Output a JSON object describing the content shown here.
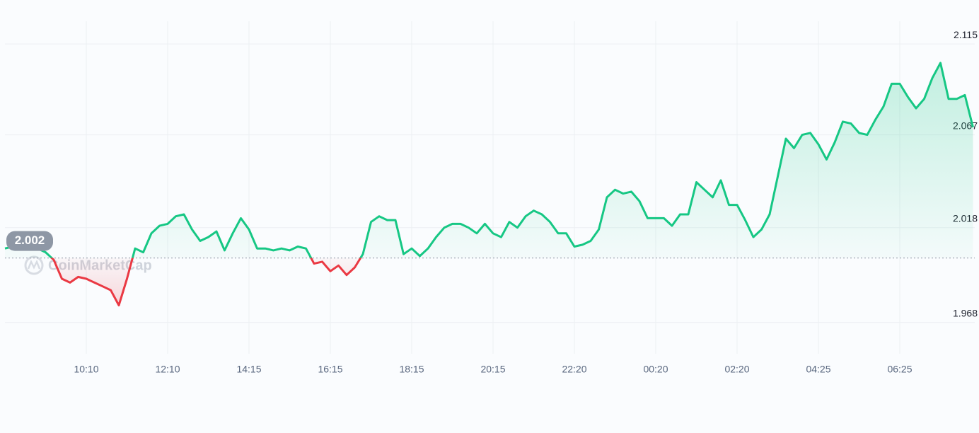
{
  "chart_data": {
    "type": "line",
    "watermark": "CoinMarketCap",
    "categories": [
      null,
      null,
      null,
      null,
      null,
      null,
      null,
      null,
      null,
      null,
      "10:10",
      null,
      null,
      null,
      null,
      null,
      null,
      null,
      null,
      null,
      "12:10",
      null,
      null,
      null,
      null,
      null,
      null,
      null,
      null,
      null,
      "14:15",
      null,
      null,
      null,
      null,
      null,
      null,
      null,
      null,
      null,
      "16:15",
      null,
      null,
      null,
      null,
      null,
      null,
      null,
      null,
      null,
      "18:15",
      null,
      null,
      null,
      null,
      null,
      null,
      null,
      null,
      null,
      "20:15",
      null,
      null,
      null,
      null,
      null,
      null,
      null,
      null,
      null,
      "22:20",
      null,
      null,
      null,
      null,
      null,
      null,
      null,
      null,
      null,
      "00:20",
      null,
      null,
      null,
      null,
      null,
      null,
      null,
      null,
      null,
      "02:20",
      null,
      null,
      null,
      null,
      null,
      null,
      null,
      null,
      null,
      "04:25",
      null,
      null,
      null,
      null,
      null,
      null,
      null,
      null,
      null,
      "06:25",
      null,
      null,
      null,
      null,
      null,
      null,
      null,
      null,
      null
    ],
    "values": [
      2.007,
      2.008,
      2.008,
      2.007,
      2.007,
      2.005,
      2.001,
      1.991,
      1.989,
      1.992,
      1.991,
      1.989,
      1.987,
      1.985,
      1.977,
      1.991,
      2.007,
      2.005,
      2.015,
      2.019,
      2.02,
      2.024,
      2.025,
      2.017,
      2.011,
      2.013,
      2.016,
      2.006,
      2.015,
      2.023,
      2.017,
      2.007,
      2.007,
      2.006,
      2.007,
      2.006,
      2.008,
      2.007,
      1.999,
      2.0,
      1.995,
      1.998,
      1.993,
      1.997,
      2.004,
      2.021,
      2.024,
      2.022,
      2.022,
      2.004,
      2.007,
      2.003,
      2.007,
      2.013,
      2.018,
      2.02,
      2.02,
      2.018,
      2.015,
      2.02,
      2.015,
      2.013,
      2.021,
      2.018,
      2.024,
      2.027,
      2.025,
      2.021,
      2.015,
      2.015,
      2.008,
      2.009,
      2.011,
      2.017,
      2.034,
      2.038,
      2.036,
      2.037,
      2.032,
      2.023,
      2.023,
      2.023,
      2.019,
      2.025,
      2.025,
      2.042,
      2.038,
      2.034,
      2.043,
      2.03,
      2.03,
      2.022,
      2.013,
      2.017,
      2.025,
      2.045,
      2.065,
      2.06,
      2.067,
      2.068,
      2.062,
      2.054,
      2.063,
      2.074,
      2.073,
      2.068,
      2.067,
      2.075,
      2.082,
      2.094,
      2.094,
      2.087,
      2.081,
      2.086,
      2.097,
      2.105,
      2.086,
      2.086,
      2.088,
      2.071
    ],
    "baseline": 2.002,
    "up_color": "#16c784",
    "down_color": "#ea3943",
    "ylim": [
      1.96,
      2.13
    ],
    "yticks": [
      1.968,
      2.018,
      2.067,
      2.115
    ],
    "grid": true
  }
}
